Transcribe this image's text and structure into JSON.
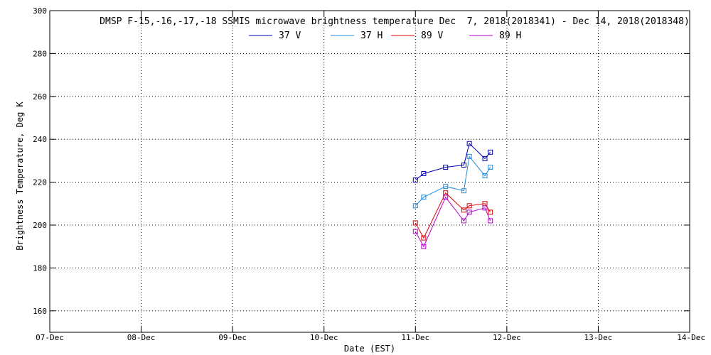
{
  "chart_data": {
    "type": "line",
    "title": "DMSP F-15,-16,-17,-18 SSMIS microwave brightness temperature Dec  7, 2018(2018341) - Dec 14, 2018(2018348)",
    "xlabel": "Date (EST)",
    "ylabel": "Brightness Temperature, Deg K",
    "xlim": [
      0,
      7
    ],
    "ylim": [
      150,
      300
    ],
    "x_ticks": [
      0,
      1,
      2,
      3,
      4,
      5,
      6,
      7
    ],
    "x_tick_labels": [
      "07-Dec",
      "08-Dec",
      "09-Dec",
      "10-Dec",
      "11-Dec",
      "12-Dec",
      "13-Dec",
      "14-Dec"
    ],
    "y_ticks": [
      160,
      180,
      200,
      220,
      240,
      260,
      280,
      300
    ],
    "y_tick_labels": [
      "160",
      "180",
      "200",
      "220",
      "240",
      "260",
      "280",
      "300"
    ],
    "grid": true,
    "legend_position": "top-center",
    "series": [
      {
        "name": "37 V",
        "color": "#0000b4",
        "marker": "square",
        "x": [
          4.0,
          4.09,
          4.33,
          4.53,
          4.59,
          4.76,
          4.82
        ],
        "y": [
          221,
          224,
          227,
          228,
          238,
          231,
          234
        ]
      },
      {
        "name": "37 H",
        "color": "#1e8cdc",
        "marker": "square",
        "x": [
          4.0,
          4.09,
          4.33,
          4.53,
          4.59,
          4.76,
          4.82
        ],
        "y": [
          209,
          213,
          218,
          216,
          232,
          223,
          227
        ]
      },
      {
        "name": "89 V",
        "color": "#dc0000",
        "marker": "square",
        "x": [
          4.0,
          4.09,
          4.33,
          4.53,
          4.59,
          4.76,
          4.82
        ],
        "y": [
          201,
          194,
          215,
          207,
          209,
          210,
          206
        ]
      },
      {
        "name": "89 H",
        "color": "#b400c8",
        "marker": "square",
        "x": [
          4.0,
          4.09,
          4.33,
          4.53,
          4.59,
          4.76,
          4.82
        ],
        "y": [
          197,
          190,
          213,
          202,
          206,
          208,
          202
        ]
      }
    ]
  }
}
